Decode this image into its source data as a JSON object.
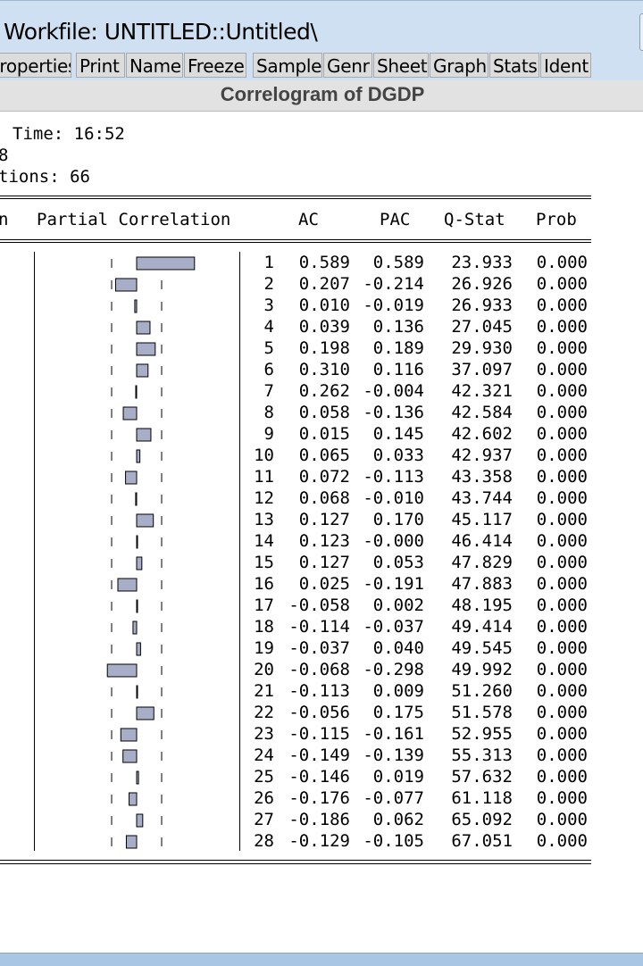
{
  "window": {
    "title": "Workfile: UNTITLED::Untitled\\"
  },
  "toolbar": {
    "buttons": [
      "Properties",
      "Print",
      "Name",
      "Freeze",
      "Sample",
      "Genr",
      "Sheet",
      "Graph",
      "Stats",
      "Ident"
    ]
  },
  "view": {
    "title": "Correlogram of DGDP"
  },
  "header": {
    "time_line": "Time: 16:52",
    "sample_fragment": "8",
    "obs_line": "tions: 66"
  },
  "table": {
    "columns": {
      "autocorrelation": "n",
      "partial_correlation": "Partial Correlation",
      "ac": "AC",
      "pac": "PAC",
      "qstat": "Q-Stat",
      "prob": "Prob"
    },
    "rows": [
      {
        "lag": "1",
        "ac": "0.589",
        "pac": "0.589",
        "q": "23.933",
        "prob": "0.000"
      },
      {
        "lag": "2",
        "ac": "0.207",
        "pac": "-0.214",
        "q": "26.926",
        "prob": "0.000"
      },
      {
        "lag": "3",
        "ac": "0.010",
        "pac": "-0.019",
        "q": "26.933",
        "prob": "0.000"
      },
      {
        "lag": "4",
        "ac": "0.039",
        "pac": "0.136",
        "q": "27.045",
        "prob": "0.000"
      },
      {
        "lag": "5",
        "ac": "0.198",
        "pac": "0.189",
        "q": "29.930",
        "prob": "0.000"
      },
      {
        "lag": "6",
        "ac": "0.310",
        "pac": "0.116",
        "q": "37.097",
        "prob": "0.000"
      },
      {
        "lag": "7",
        "ac": "0.262",
        "pac": "-0.004",
        "q": "42.321",
        "prob": "0.000"
      },
      {
        "lag": "8",
        "ac": "0.058",
        "pac": "-0.136",
        "q": "42.584",
        "prob": "0.000"
      },
      {
        "lag": "9",
        "ac": "0.015",
        "pac": "0.145",
        "q": "42.602",
        "prob": "0.000"
      },
      {
        "lag": "10",
        "ac": "0.065",
        "pac": "0.033",
        "q": "42.937",
        "prob": "0.000"
      },
      {
        "lag": "11",
        "ac": "0.072",
        "pac": "-0.113",
        "q": "43.358",
        "prob": "0.000"
      },
      {
        "lag": "12",
        "ac": "0.068",
        "pac": "-0.010",
        "q": "43.744",
        "prob": "0.000"
      },
      {
        "lag": "13",
        "ac": "0.127",
        "pac": "0.170",
        "q": "45.117",
        "prob": "0.000"
      },
      {
        "lag": "14",
        "ac": "0.123",
        "pac": "-0.000",
        "q": "46.414",
        "prob": "0.000"
      },
      {
        "lag": "15",
        "ac": "0.127",
        "pac": "0.053",
        "q": "47.829",
        "prob": "0.000"
      },
      {
        "lag": "16",
        "ac": "0.025",
        "pac": "-0.191",
        "q": "47.883",
        "prob": "0.000"
      },
      {
        "lag": "17",
        "ac": "-0.058",
        "pac": "0.002",
        "q": "48.195",
        "prob": "0.000"
      },
      {
        "lag": "18",
        "ac": "-0.114",
        "pac": "-0.037",
        "q": "49.414",
        "prob": "0.000"
      },
      {
        "lag": "19",
        "ac": "-0.037",
        "pac": "0.040",
        "q": "49.545",
        "prob": "0.000"
      },
      {
        "lag": "20",
        "ac": "-0.068",
        "pac": "-0.298",
        "q": "49.992",
        "prob": "0.000"
      },
      {
        "lag": "21",
        "ac": "-0.113",
        "pac": "0.009",
        "q": "51.260",
        "prob": "0.000"
      },
      {
        "lag": "22",
        "ac": "-0.056",
        "pac": "0.175",
        "q": "51.578",
        "prob": "0.000"
      },
      {
        "lag": "23",
        "ac": "-0.115",
        "pac": "-0.161",
        "q": "52.955",
        "prob": "0.000"
      },
      {
        "lag": "24",
        "ac": "-0.149",
        "pac": "-0.139",
        "q": "55.313",
        "prob": "0.000"
      },
      {
        "lag": "25",
        "ac": "-0.146",
        "pac": "0.019",
        "q": "57.632",
        "prob": "0.000"
      },
      {
        "lag": "26",
        "ac": "-0.176",
        "pac": "-0.077",
        "q": "61.118",
        "prob": "0.000"
      },
      {
        "lag": "27",
        "ac": "-0.186",
        "pac": "0.062",
        "q": "65.092",
        "prob": "0.000"
      },
      {
        "lag": "28",
        "ac": "-0.129",
        "pac": "-0.105",
        "q": "67.051",
        "prob": "0.000"
      }
    ]
  },
  "colors": {
    "bar_fill": "#a8aec8",
    "titlebar": "#cfe0f2",
    "bottombar": "#a9c6e4"
  }
}
